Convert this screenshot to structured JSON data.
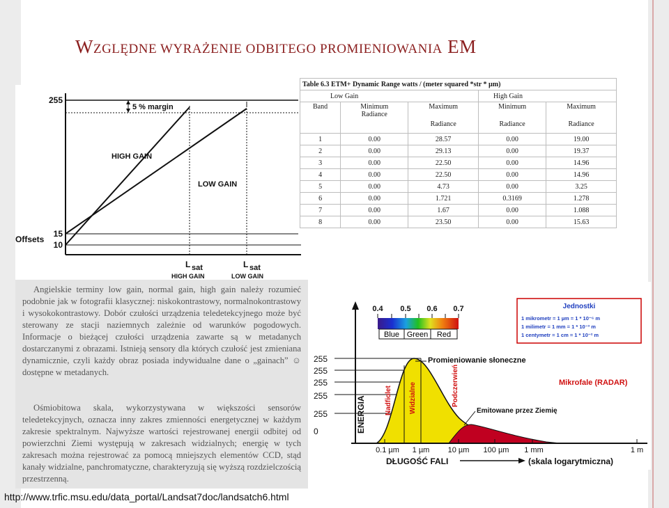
{
  "title": {
    "first": "W",
    "rest": "ZGLĘDNE WYRAŻENIE ODBITEGO PROMIENIOWANIA",
    "em": "EM"
  },
  "gain_chart": {
    "y_top": "255",
    "margin_label": "5 % margin",
    "high_gain": "HIGH GAIN",
    "low_gain": "LOW GAIN",
    "offsets": "Offsets",
    "y_15": "15",
    "y_10": "10",
    "lsat_high_L": "L",
    "lsat_high_sub": "sat",
    "lsat_high_caption": "HIGH GAIN",
    "lsat_low_L": "L",
    "lsat_low_sub": "sat",
    "lsat_low_caption": "LOW GAIN"
  },
  "table": {
    "caption": "Table 6.3 ETM+ Dynamic Range watts / (meter squared *str * µm)",
    "low_gain": "Low Gain",
    "high_gain": "High Gain",
    "col_band": "Band",
    "col_min1": "Minimum",
    "col_rad1": "Radiance",
    "col_max1": "Maximum",
    "col_rad2": "Radiance",
    "col_min2": "Minimum",
    "col_rad3": "Radiance",
    "col_max2": "Maximum",
    "col_rad4": "Radiance",
    "rows": [
      [
        "1",
        "0.00",
        "28.57",
        "0.00",
        "19.00"
      ],
      [
        "2",
        "0.00",
        "29.13",
        "0.00",
        "19.37"
      ],
      [
        "3",
        "0.00",
        "22.50",
        "0.00",
        "14.96"
      ],
      [
        "4",
        "0.00",
        "22.50",
        "0.00",
        "14.96"
      ],
      [
        "5",
        "0.00",
        "4.73",
        "0.00",
        "3.25"
      ],
      [
        "6",
        "0.00",
        "1.721",
        "0.3169",
        "1.278"
      ],
      [
        "7",
        "0.00",
        "1.67",
        "0.00",
        "1.088"
      ],
      [
        "8",
        "0.00",
        "23.50",
        "0.00",
        "15.63"
      ]
    ]
  },
  "text": {
    "para1": "Angielskie terminy low gain, normal gain, high gain należy rozumieć podobnie jak w fotografii klasycznej: niskokontrastowy, normalnokontrastowy i wysokokontrastowy. Dobór czułości urządzenia teledetekcyjnego może być sterowany ze stacji naziemnych zależnie od warunków pogodowych. Informacje o bieżącej czułości urządzenia zawarte są w metadanych dostarczanymi z obrazami. Istnieją sensory dla których czułość jest zmieniana dynamicznie, czyli każdy obraz posiada indywidualne dane o „gainach” ☺ dostępne w metadanych.",
    "para2": "Ośmiobitowa skala, wykorzystywana w większości sensorów teledetekcyjnych, oznacza inny zakres zmienności energetycznej w każdym zakresie spektralnym. Najwyższe wartości rejestrowanej energii odbitej od powierzchni Ziemi występują w zakresach widzialnych; energię w tych zakresach można rejestrować za pomocą mniejszych elementów CCD, stąd kanały widzialne, panchromatyczne, charakteryzują się wyższą rozdzielczością przestrzenną."
  },
  "spectrum": {
    "ticks_top": [
      "0.4",
      "0.5",
      "0.6",
      "0.7"
    ],
    "blue": "Blue",
    "green": "Green",
    "red": "Red",
    "jednostki_title": "Jednostki",
    "unit1": "1 mikrometr = 1 µm = 1 * 10⁻⁶ m",
    "unit2": "1 milimetr  = 1 mm = 1 * 10⁻³ m",
    "unit3": "1 centymetr = 1 cm = 1 * 10⁻² m",
    "solar": "Promieniowanie słoneczne",
    "microwave": "Mikrofale (RADAR)",
    "earth": "Emitowane przez Ziemię",
    "nadfiolet": "Nadfiolet",
    "widzialne": "Widzialne",
    "podczerwien": "Podczerwień",
    "energia": "ENERGIA",
    "levels": [
      "255",
      "255",
      "255",
      "255",
      "255",
      "0"
    ],
    "x_ticks": [
      "0.1 µm",
      "1 µm",
      "10 µm",
      "100 µm",
      "1 mm",
      "1 m"
    ],
    "xlabel": "DŁUGOŚĆ FALI",
    "xlabel2": "(skala logarytmiczna)"
  },
  "url": "http://www.trfic.msu.edu/data_portal/Landsat7doc/landsatch6.html",
  "colors": {
    "title": "#8b1f1f",
    "jednostki": "#1f3fbf",
    "microwave": "#d01010",
    "solar_fill": "#f0e000"
  }
}
